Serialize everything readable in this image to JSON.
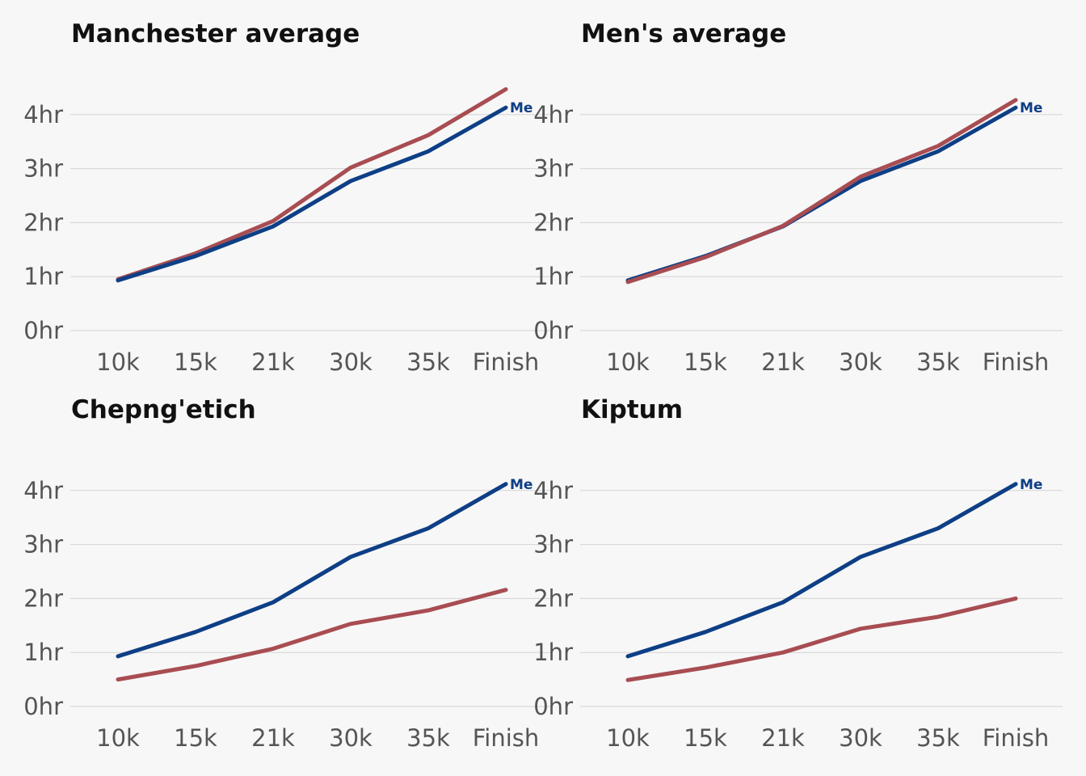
{
  "colors": {
    "me": "#0e3f86",
    "comparison": "#a84d52"
  },
  "chart_data": [
    {
      "type": "line",
      "title": "Manchester average",
      "categories": [
        "10k",
        "15k",
        "21k",
        "30k",
        "35k",
        "Finish"
      ],
      "yticks": [
        "0hr",
        "1hr",
        "2hr",
        "3hr",
        "4hr"
      ],
      "ylim": [
        0,
        4
      ],
      "series": [
        {
          "name": "Me",
          "role": "me",
          "values": [
            0.93,
            1.38,
            1.93,
            2.77,
            3.32,
            4.13
          ]
        },
        {
          "role": "comparison",
          "values": [
            0.95,
            1.43,
            2.03,
            3.02,
            3.62,
            4.47
          ]
        }
      ]
    },
    {
      "type": "line",
      "title": "Men's average",
      "categories": [
        "10k",
        "15k",
        "21k",
        "30k",
        "35k",
        "Finish"
      ],
      "yticks": [
        "0hr",
        "1hr",
        "2hr",
        "3hr",
        "4hr"
      ],
      "ylim": [
        0,
        4
      ],
      "series": [
        {
          "name": "Me",
          "role": "me",
          "values": [
            0.93,
            1.38,
            1.93,
            2.77,
            3.32,
            4.13
          ]
        },
        {
          "role": "comparison",
          "values": [
            0.9,
            1.36,
            1.94,
            2.85,
            3.42,
            4.27
          ]
        }
      ]
    },
    {
      "type": "line",
      "title": "Chepng'etich",
      "categories": [
        "10k",
        "15k",
        "21k",
        "30k",
        "35k",
        "Finish"
      ],
      "yticks": [
        "0hr",
        "1hr",
        "2hr",
        "3hr",
        "4hr"
      ],
      "ylim": [
        0,
        4
      ],
      "series": [
        {
          "name": "Me",
          "role": "me",
          "values": [
            0.93,
            1.38,
            1.93,
            2.77,
            3.3,
            4.12
          ]
        },
        {
          "role": "comparison",
          "values": [
            0.5,
            0.75,
            1.07,
            1.53,
            1.78,
            2.16
          ]
        }
      ]
    },
    {
      "type": "line",
      "title": "Kiptum",
      "categories": [
        "10k",
        "15k",
        "21k",
        "30k",
        "35k",
        "Finish"
      ],
      "yticks": [
        "0hr",
        "1hr",
        "2hr",
        "3hr",
        "4hr"
      ],
      "ylim": [
        0,
        4
      ],
      "series": [
        {
          "name": "Me",
          "role": "me",
          "values": [
            0.93,
            1.38,
            1.93,
            2.77,
            3.3,
            4.12
          ]
        },
        {
          "role": "comparison",
          "values": [
            0.49,
            0.72,
            1.0,
            1.44,
            1.66,
            2.0
          ]
        }
      ]
    }
  ]
}
